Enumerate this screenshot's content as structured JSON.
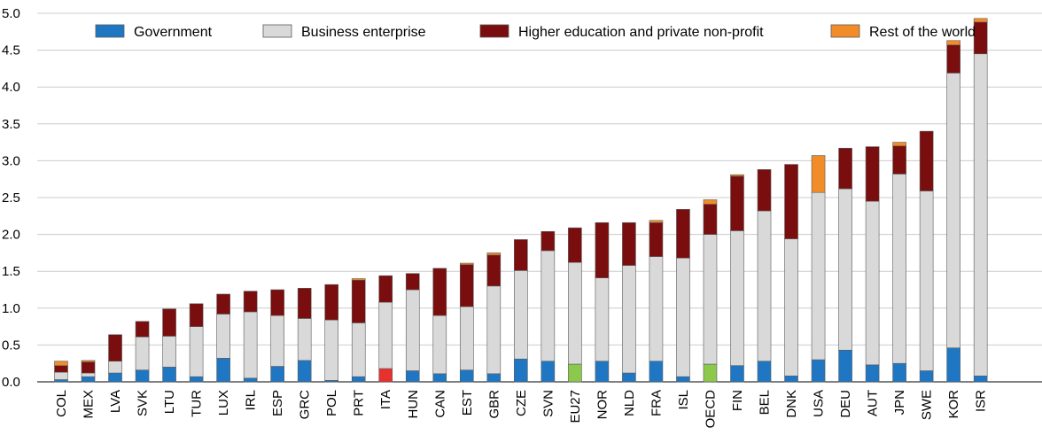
{
  "chart_data": {
    "type": "bar",
    "stacked": true,
    "title": "",
    "xlabel": "",
    "ylabel": "",
    "ylim": [
      0,
      5.0
    ],
    "yticks": [
      "0.0",
      "0.5",
      "1.0",
      "1.5",
      "2.0",
      "2.5",
      "3.0",
      "3.5",
      "4.0",
      "4.5",
      "5.0"
    ],
    "grid": "horizontal",
    "legend_position": "top",
    "categories": [
      "COL",
      "MEX",
      "LVA",
      "SVK",
      "LTU",
      "TUR",
      "LUX",
      "IRL",
      "ESP",
      "GRC",
      "POL",
      "PRT",
      "ITA",
      "HUN",
      "CAN",
      "EST",
      "GBR",
      "CZE",
      "SVN",
      "EU27",
      "NOR",
      "NLD",
      "FRA",
      "ISL",
      "OECD",
      "FIN",
      "BEL",
      "DNK",
      "USA",
      "DEU",
      "AUT",
      "JPN",
      "SWE",
      "KOR",
      "ISR"
    ],
    "series": [
      {
        "name": "Government",
        "color": "#1f77c4",
        "values": [
          0.03,
          0.07,
          0.12,
          0.16,
          0.2,
          0.07,
          0.32,
          0.05,
          0.21,
          0.29,
          0.02,
          0.07,
          0.18,
          0.15,
          0.11,
          0.16,
          0.11,
          0.31,
          0.28,
          0.24,
          0.28,
          0.12,
          0.28,
          0.07,
          0.24,
          0.22,
          0.28,
          0.08,
          0.3,
          0.43,
          0.23,
          0.25,
          0.15,
          0.46,
          0.08
        ]
      },
      {
        "name": "Business enterprise",
        "color": "#d9d9d9",
        "values": [
          0.1,
          0.05,
          0.16,
          0.45,
          0.42,
          0.68,
          0.6,
          0.9,
          0.69,
          0.57,
          0.82,
          0.73,
          0.9,
          1.1,
          0.79,
          0.86,
          1.19,
          1.2,
          1.5,
          1.38,
          1.13,
          1.46,
          1.42,
          1.61,
          1.76,
          1.83,
          2.04,
          1.86,
          2.27,
          2.19,
          2.22,
          2.57,
          2.44,
          3.73,
          4.37
        ]
      },
      {
        "name": "Higher education and private non-profit",
        "color": "#7a0d0d",
        "values": [
          0.09,
          0.15,
          0.36,
          0.21,
          0.37,
          0.31,
          0.27,
          0.28,
          0.35,
          0.41,
          0.48,
          0.58,
          0.36,
          0.22,
          0.64,
          0.57,
          0.42,
          0.42,
          0.26,
          0.47,
          0.75,
          0.58,
          0.46,
          0.66,
          0.41,
          0.74,
          0.56,
          1.01,
          0.0,
          0.55,
          0.74,
          0.38,
          0.81,
          0.38,
          0.43
        ]
      },
      {
        "name": "Rest of the world",
        "color": "#f28c28",
        "values": [
          0.06,
          0.02,
          0.0,
          0.0,
          0.0,
          0.0,
          0.0,
          0.0,
          0.0,
          0.0,
          0.0,
          0.02,
          0.0,
          0.0,
          0.0,
          0.02,
          0.03,
          0.0,
          0.0,
          0.0,
          0.0,
          0.0,
          0.03,
          0.0,
          0.06,
          0.02,
          0.0,
          0.0,
          0.5,
          0.0,
          0.0,
          0.05,
          0.0,
          0.06,
          0.05
        ]
      }
    ],
    "highlights": [
      {
        "category": "ITA",
        "series": "Government",
        "color": "#e8312f"
      },
      {
        "category": "EU27",
        "series": "Government",
        "color": "#8cc84b"
      },
      {
        "category": "OECD",
        "series": "Government",
        "color": "#8cc84b"
      }
    ],
    "colors": {
      "grid": "#cccccc",
      "axis": "#000000",
      "bar_outline": "#5a5a5a"
    }
  }
}
